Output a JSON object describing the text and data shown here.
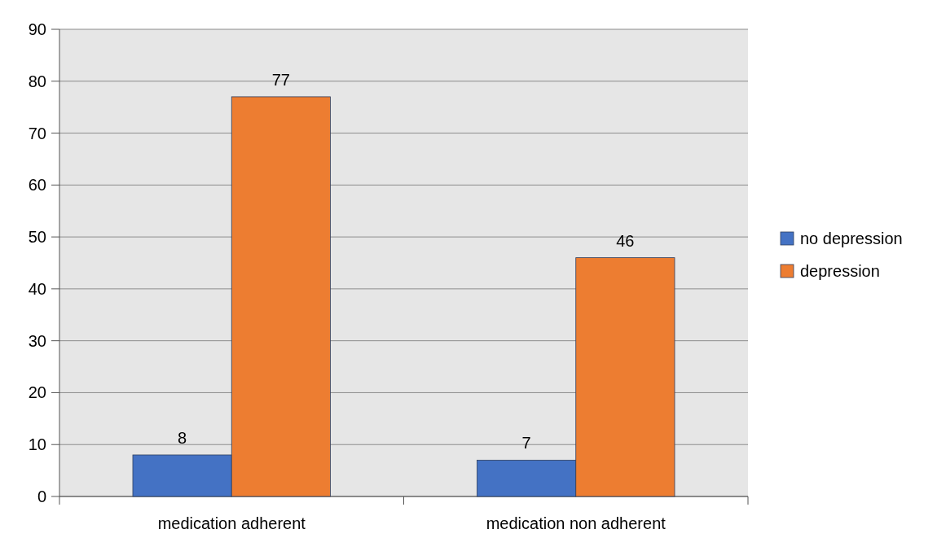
{
  "chart_data": {
    "type": "bar",
    "categories": [
      "medication adherent",
      "medication non adherent"
    ],
    "series": [
      {
        "name": "no depression",
        "color": "#4472c4",
        "values": [
          8,
          7
        ]
      },
      {
        "name": "depression",
        "color": "#ed7d31",
        "values": [
          77,
          46
        ]
      }
    ],
    "ylim": [
      0,
      90
    ],
    "yticks": [
      0,
      10,
      20,
      30,
      40,
      50,
      60,
      70,
      80,
      90
    ],
    "grid": "y",
    "legend": "right",
    "data_labels": true
  }
}
